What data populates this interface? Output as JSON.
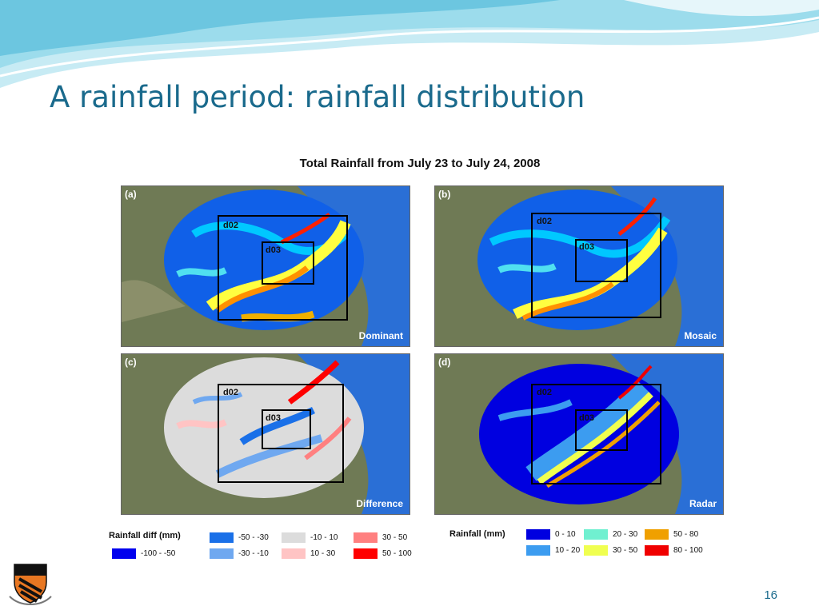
{
  "slide": {
    "title": "A rainfall period: rainfall distribution",
    "page_number": "16"
  },
  "figure": {
    "title": "Total Rainfall from July 23 to July 24, 2008",
    "panels": [
      {
        "letter": "(a)",
        "name": "Dominant",
        "domains": [
          "d02",
          "d03"
        ]
      },
      {
        "letter": "(b)",
        "name": "Mosaic",
        "domains": [
          "d02",
          "d03"
        ]
      },
      {
        "letter": "(c)",
        "name": "Difference",
        "domains": [
          "d02",
          "d03"
        ]
      },
      {
        "letter": "(d)",
        "name": "Radar",
        "domains": [
          "d02",
          "d03"
        ]
      }
    ],
    "legend_diff": {
      "title": "Rainfall diff (mm)",
      "items": [
        {
          "label": "-100 - -50",
          "color": "#0000ee"
        },
        {
          "label": "-50 - -30",
          "color": "#1a70e8"
        },
        {
          "label": "-30 - -10",
          "color": "#6fa8f0"
        },
        {
          "label": "-10 - 10",
          "color": "#dcdcdc"
        },
        {
          "label": "10 - 30",
          "color": "#ffc4c4"
        },
        {
          "label": "30 - 50",
          "color": "#ff8080"
        },
        {
          "label": "50 - 100",
          "color": "#ff0000"
        }
      ]
    },
    "legend_rain": {
      "title": "Rainfall (mm)",
      "items": [
        {
          "label": "0 - 10",
          "color": "#0000e0"
        },
        {
          "label": "10 - 20",
          "color": "#3c9cf0"
        },
        {
          "label": "20 - 30",
          "color": "#70f0d0"
        },
        {
          "label": "30 - 50",
          "color": "#f0ff50"
        },
        {
          "label": "50 - 80",
          "color": "#f0a000"
        },
        {
          "label": "80 - 100",
          "color": "#f00000"
        }
      ]
    }
  },
  "colors": {
    "title": "#1a6a8c",
    "ocean": "#2a6fd6",
    "land": "#6f7a55"
  }
}
